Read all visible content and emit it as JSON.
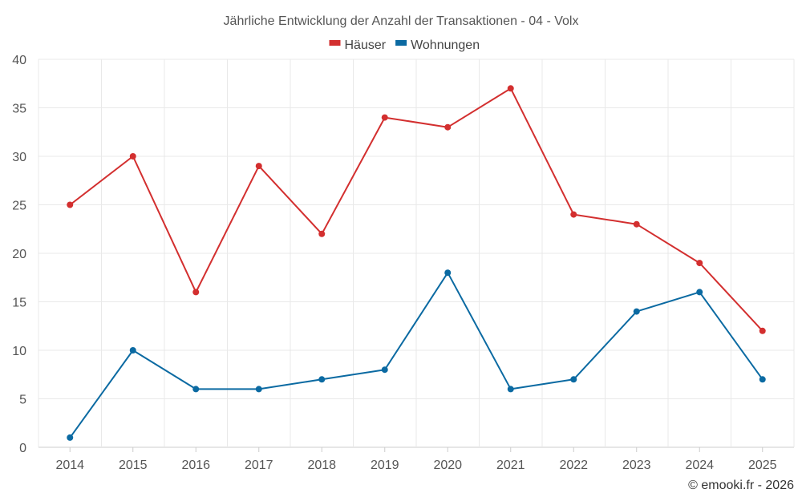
{
  "chart_data": {
    "type": "line",
    "title": "Jährliche Entwicklung der Anzahl der Transaktionen - 04 - Volx",
    "xlabel": "",
    "ylabel": "",
    "categories": [
      "2014",
      "2015",
      "2016",
      "2017",
      "2018",
      "2019",
      "2020",
      "2021",
      "2022",
      "2023",
      "2024",
      "2025"
    ],
    "ylim": [
      0,
      40
    ],
    "yticks": [
      0,
      5,
      10,
      15,
      20,
      25,
      30,
      35,
      40
    ],
    "grid": true,
    "legend_position": "top-center",
    "series": [
      {
        "name": "Häuser",
        "color": "#d32f2f",
        "values": [
          25,
          30,
          16,
          29,
          22,
          34,
          33,
          37,
          24,
          23,
          19,
          12
        ]
      },
      {
        "name": "Wohnungen",
        "color": "#0b6aa2",
        "values": [
          1,
          10,
          6,
          6,
          7,
          8,
          18,
          6,
          7,
          14,
          16,
          7
        ]
      }
    ]
  },
  "credit": "© emooki.fr - 2026"
}
